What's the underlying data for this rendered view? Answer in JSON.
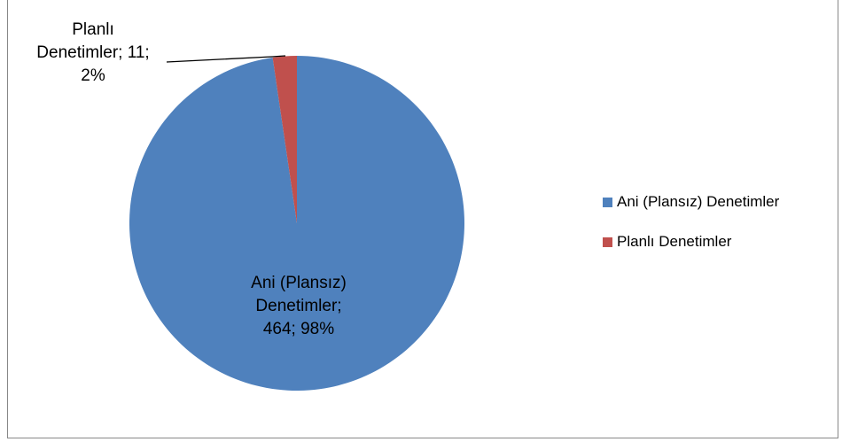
{
  "chart_data": {
    "type": "pie",
    "title": "",
    "categories": [
      "Ani (Plansız) Denetimler",
      "Planlı Denetimler"
    ],
    "values": [
      464,
      11
    ],
    "percentages": [
      "98%",
      "2%"
    ],
    "colors": [
      "#4F81BD",
      "#C0504D"
    ],
    "data_labels": [
      {
        "line1": "Ani (Plansız)",
        "line2": "Denetimler;",
        "line3": "464; 98%"
      },
      {
        "line1": "Planlı",
        "line2": "Denetimler; 11;",
        "line3": "2%"
      }
    ],
    "legend": {
      "position": "right",
      "items": [
        "Ani (Plansız) Denetimler",
        "Planlı Denetimler"
      ]
    }
  }
}
